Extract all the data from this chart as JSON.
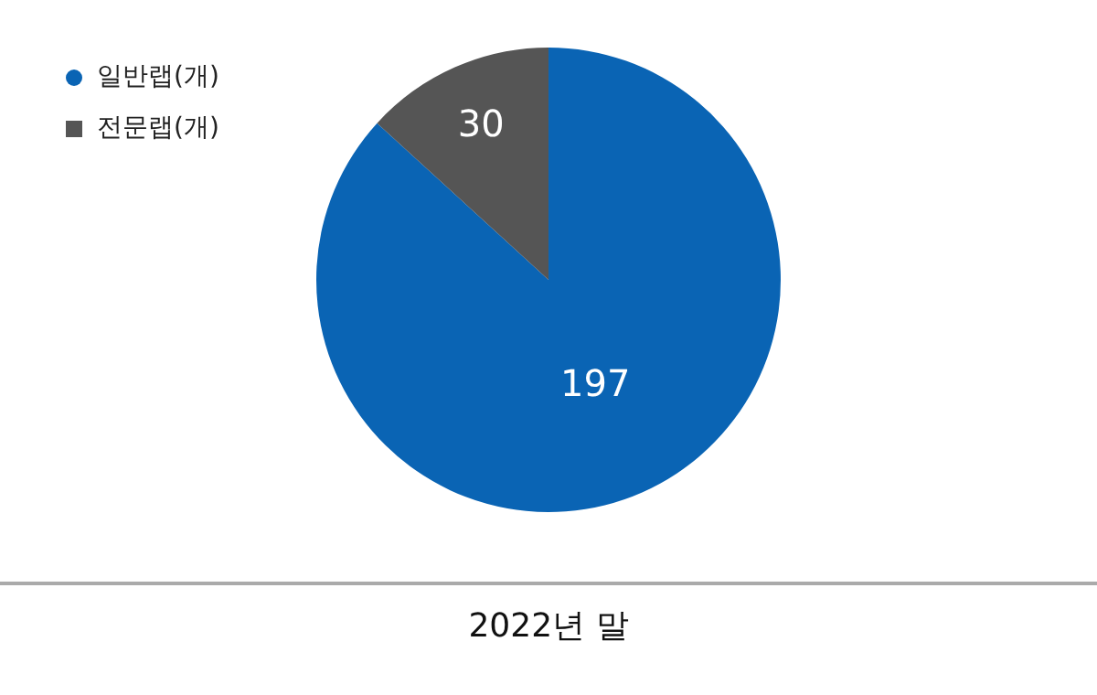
{
  "chart_data": {
    "type": "pie",
    "categories": [
      "일반랩(개)",
      "전문랩(개)"
    ],
    "values": [
      197,
      30
    ],
    "colors": [
      "#0a64b4",
      "#555555"
    ],
    "xlabel": "2022년 말",
    "legend": "top left",
    "data_labels": true
  }
}
